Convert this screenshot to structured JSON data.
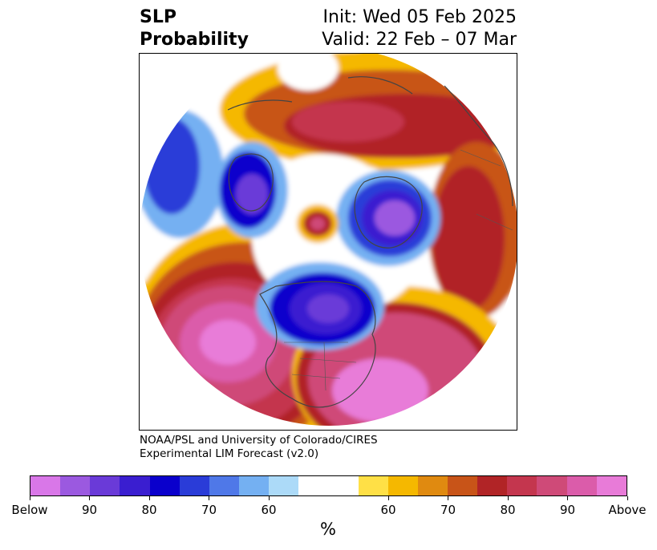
{
  "header": {
    "title_line1": "SLP",
    "title_line2": "Probability",
    "init_text": "Init: Wed 05 Feb 2025",
    "valid_text": "Valid: 22 Feb – 07 Mar"
  },
  "credit": {
    "line1": "NOAA/PSL and University of Colorado/CIRES",
    "line2": "Experimental LIM Forecast (v2.0)"
  },
  "colorbar": {
    "units": "%",
    "tick_labels": [
      "Below",
      "90",
      "80",
      "70",
      "60",
      "60",
      "70",
      "80",
      "90",
      "Above"
    ],
    "colors": [
      "#d977e8",
      "#9b59e0",
      "#6a3ad8",
      "#3a1ed0",
      "#0a00cc",
      "#2a3cd8",
      "#4f78e8",
      "#74b0f2",
      "#acdaf8",
      "#ffffff",
      "#ffe046",
      "#f5b800",
      "#e08a10",
      "#c85418",
      "#b12426",
      "#c4364e",
      "#cf4a78",
      "#db5caa",
      "#e87bd8"
    ]
  },
  "map": {
    "projection": "north-polar-stereographic",
    "fields": [
      "below-normal-probability",
      "above-normal-probability"
    ],
    "overlays": [
      "coastlines",
      "country-borders",
      "state-borders"
    ]
  }
}
